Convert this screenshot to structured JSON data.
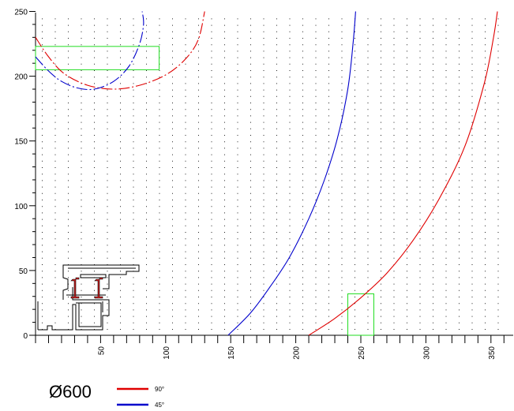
{
  "chart_data": {
    "type": "line",
    "x_ticks": [
      50,
      100,
      150,
      200,
      250,
      300,
      350
    ],
    "y_ticks": [
      0,
      50,
      100,
      150,
      200,
      250
    ],
    "xlim": [
      0,
      370
    ],
    "ylim": [
      0,
      250
    ],
    "grid": "dotted",
    "colors": {
      "red": "#e00000",
      "blue": "#0000cc",
      "green": "#22dd22",
      "profile": "#000000"
    },
    "series": [
      {
        "name": "90°",
        "color": "#e00000",
        "dashed": false,
        "points": [
          [
            210,
            0
          ],
          [
            230,
            13
          ],
          [
            250,
            29
          ],
          [
            270,
            48
          ],
          [
            290,
            73
          ],
          [
            310,
            105
          ],
          [
            330,
            146
          ],
          [
            345,
            195
          ],
          [
            352,
            230
          ],
          [
            355,
            250
          ]
        ]
      },
      {
        "name": "45°",
        "color": "#0000cc",
        "dashed": false,
        "points": [
          [
            148,
            0
          ],
          [
            165,
            17
          ],
          [
            180,
            37
          ],
          [
            195,
            60
          ],
          [
            210,
            90
          ],
          [
            222,
            120
          ],
          [
            232,
            152
          ],
          [
            240,
            190
          ],
          [
            244,
            225
          ],
          [
            246,
            250
          ]
        ]
      },
      {
        "name": "",
        "color": "#e00000",
        "dashed": true,
        "points": [
          [
            0,
            230
          ],
          [
            10,
            215
          ],
          [
            22,
            202
          ],
          [
            40,
            193
          ],
          [
            60,
            190
          ],
          [
            80,
            193
          ],
          [
            100,
            201
          ],
          [
            115,
            213
          ],
          [
            125,
            228
          ],
          [
            130,
            250
          ]
        ]
      },
      {
        "name": "",
        "color": "#0000cc",
        "dashed": true,
        "points": [
          [
            0,
            215
          ],
          [
            10,
            204
          ],
          [
            20,
            196
          ],
          [
            32,
            191
          ],
          [
            45,
            190
          ],
          [
            60,
            196
          ],
          [
            72,
            208
          ],
          [
            80,
            225
          ],
          [
            83,
            240
          ],
          [
            82,
            250
          ]
        ]
      }
    ],
    "rectangles": [
      {
        "color": "#22dd22",
        "x": [
          0,
          95
        ],
        "y": [
          205,
          223
        ]
      },
      {
        "color": "#22dd22",
        "x": [
          240,
          260
        ],
        "y": [
          0,
          32
        ]
      }
    ],
    "legend_title": "Ø600",
    "legend": [
      {
        "label": "90°",
        "color": "#e00000"
      },
      {
        "label": "45°",
        "color": "#0000cc"
      }
    ]
  }
}
